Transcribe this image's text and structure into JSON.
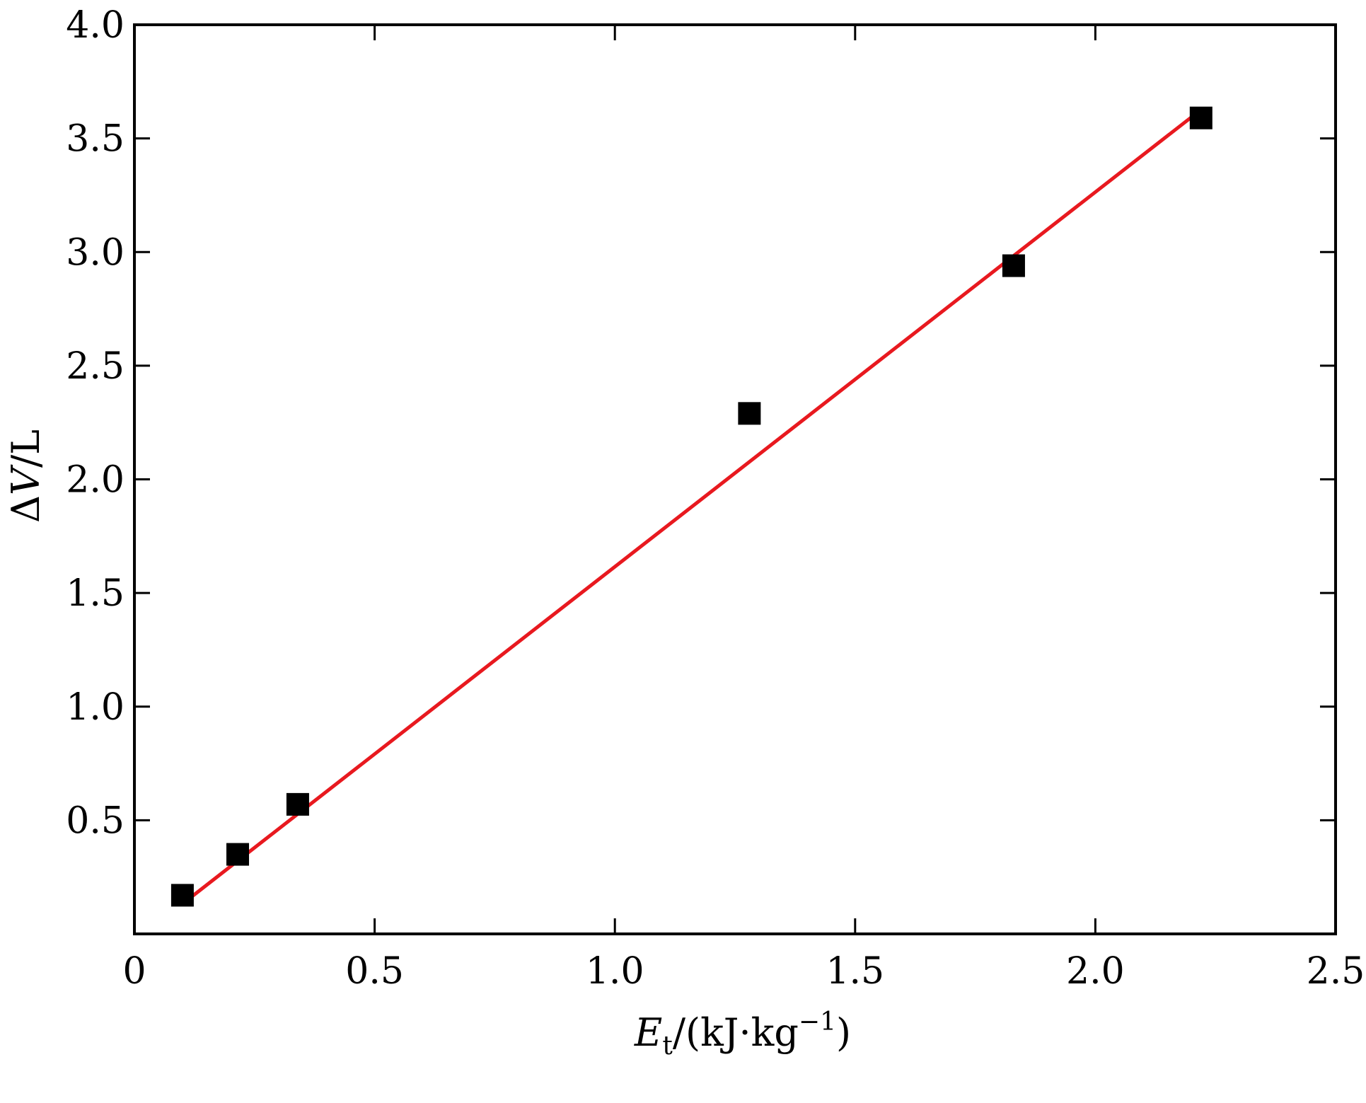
{
  "chart_data": {
    "type": "scatter",
    "xlabel": {
      "main": "E",
      "sub": "t",
      "rest": "/(kJ·kg",
      "sup": "−1",
      "close": ")"
    },
    "ylabel": {
      "delta": "Δ",
      "var": "V",
      "rest": "/L"
    },
    "xlim": [
      0,
      2.5
    ],
    "ylim": [
      0,
      4.0
    ],
    "x_ticks": [
      0,
      0.5,
      1.0,
      1.5,
      2.0,
      2.5
    ],
    "x_tick_labels": [
      "0",
      "0.5",
      "1.0",
      "1.5",
      "2.0",
      "2.5"
    ],
    "y_ticks": [
      0.5,
      1.0,
      1.5,
      2.0,
      2.5,
      3.0,
      3.5,
      4.0
    ],
    "y_tick_labels": [
      "0.5",
      "1.0",
      "1.5",
      "2.0",
      "2.5",
      "3.0",
      "3.5",
      "4.0"
    ],
    "series": [
      {
        "marker": "square",
        "color": "#000000",
        "points": [
          {
            "x": 0.1,
            "y": 0.17
          },
          {
            "x": 0.215,
            "y": 0.35
          },
          {
            "x": 0.34,
            "y": 0.57
          },
          {
            "x": 1.28,
            "y": 2.29
          },
          {
            "x": 1.83,
            "y": 2.94
          },
          {
            "x": 2.22,
            "y": 3.59
          }
        ]
      }
    ],
    "fit_line": {
      "color": "#e8191f",
      "x": [
        0.12,
        2.21
      ],
      "y": [
        0.165,
        3.61
      ]
    },
    "grid": false,
    "legend": "none"
  }
}
